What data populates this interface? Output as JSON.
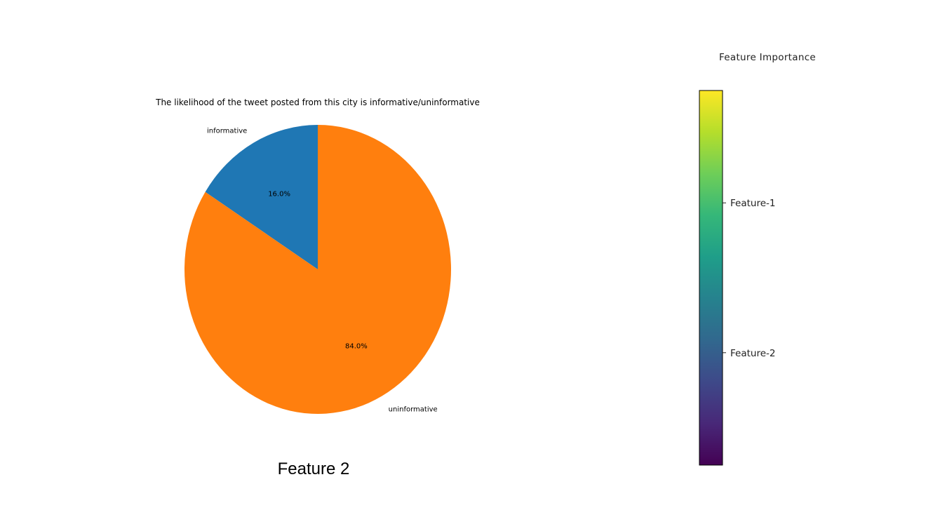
{
  "chart_data": [
    {
      "type": "pie",
      "title": "The likelihood of the tweet posted from this city is informative/uninformative",
      "slices": [
        {
          "label": "informative",
          "value": 16.0,
          "pct_label": "16.0%",
          "color": "#1f77b4"
        },
        {
          "label": "uninformative",
          "value": 84.0,
          "pct_label": "84.0%",
          "color": "#ff7f0e"
        }
      ],
      "start_angle_deg": 90,
      "direction": "counterclockwise",
      "caption": "Feature 2"
    },
    {
      "type": "colorbar",
      "title": "Feature Importance",
      "colormap": "viridis",
      "colormap_stops": [
        "#440154",
        "#482878",
        "#3e4989",
        "#31688e",
        "#26828e",
        "#1f9e89",
        "#35b779",
        "#6ece58",
        "#b5de2b",
        "#fde725"
      ],
      "range": [
        0,
        1
      ],
      "ticks": [
        {
          "label": "Feature-1",
          "value": 0.7
        },
        {
          "label": "Feature-2",
          "value": 0.3
        }
      ]
    }
  ]
}
